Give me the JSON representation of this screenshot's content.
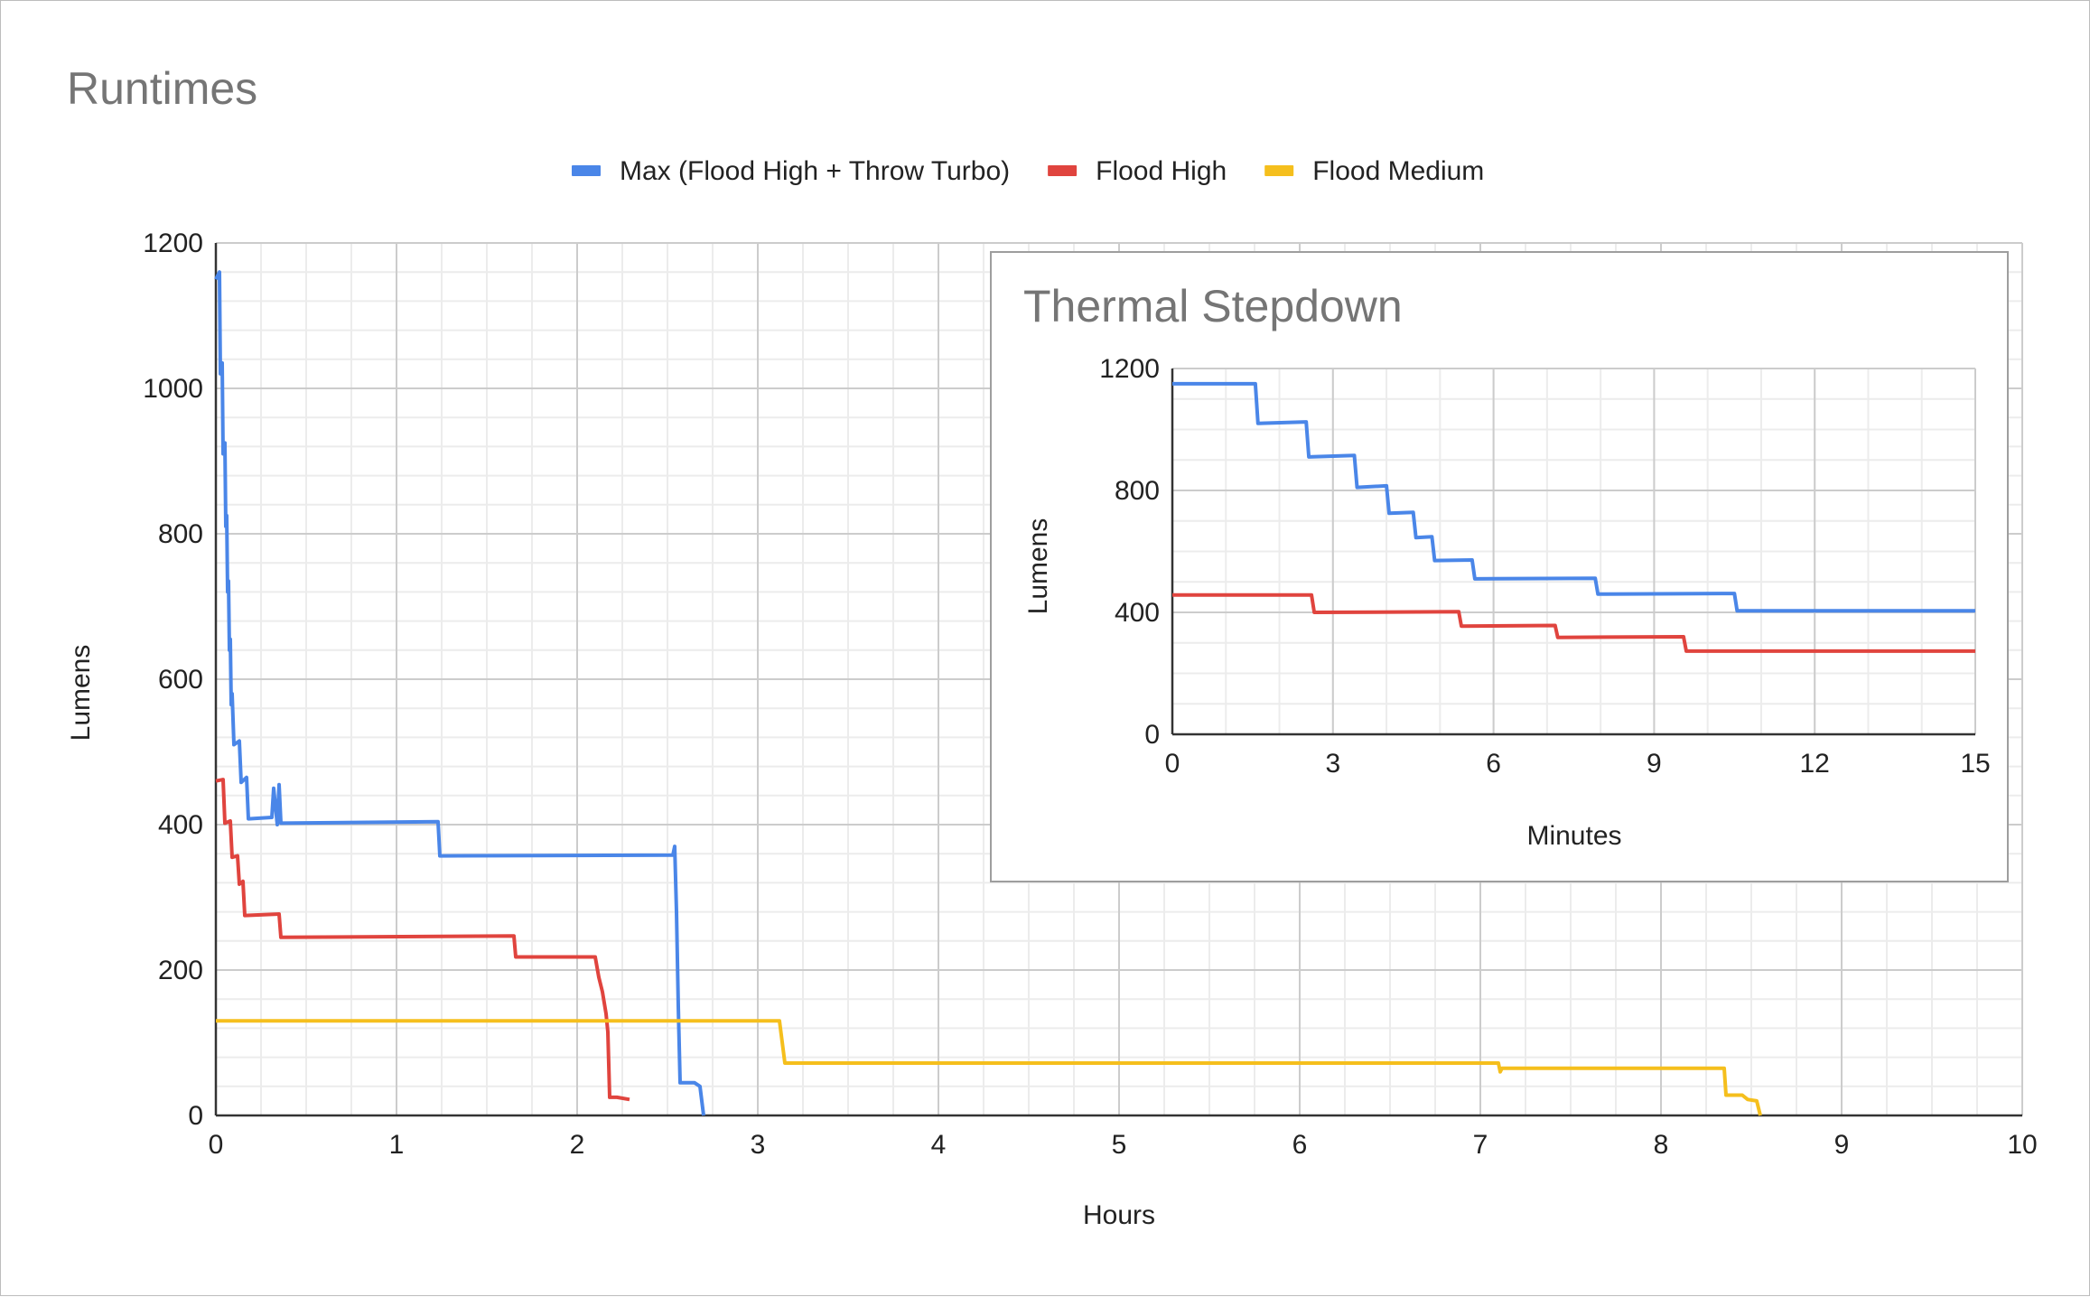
{
  "chart_data": [
    {
      "type": "line",
      "title": "Runtimes",
      "xlabel": "Hours",
      "ylabel": "Lumens",
      "xlim": [
        0,
        10
      ],
      "ylim": [
        0,
        1200
      ],
      "x_ticks": [
        "0",
        "1",
        "2",
        "3",
        "4",
        "5",
        "6",
        "7",
        "8",
        "9",
        "10"
      ],
      "y_ticks": [
        "0",
        "200",
        "400",
        "600",
        "800",
        "1000",
        "1200"
      ],
      "grid": true,
      "legend": "top-center",
      "series": [
        {
          "name": "Max (Flood High + Throw Turbo)",
          "color": "#4a86e8",
          "points": [
            [
              0,
              1150
            ],
            [
              0.02,
              1160
            ],
            [
              0.025,
              1020
            ],
            [
              0.035,
              1035
            ],
            [
              0.04,
              910
            ],
            [
              0.05,
              925
            ],
            [
              0.055,
              810
            ],
            [
              0.06,
              825
            ],
            [
              0.065,
              720
            ],
            [
              0.07,
              735
            ],
            [
              0.075,
              640
            ],
            [
              0.08,
              655
            ],
            [
              0.085,
              565
            ],
            [
              0.09,
              580
            ],
            [
              0.1,
              510
            ],
            [
              0.13,
              515
            ],
            [
              0.14,
              458
            ],
            [
              0.17,
              465
            ],
            [
              0.18,
              408
            ],
            [
              0.31,
              410
            ],
            [
              0.32,
              450
            ],
            [
              0.34,
              400
            ],
            [
              0.35,
              455
            ],
            [
              0.36,
              402
            ],
            [
              1.23,
              404
            ],
            [
              1.24,
              357
            ],
            [
              2.53,
              358
            ],
            [
              2.54,
              370
            ],
            [
              2.55,
              280
            ],
            [
              2.56,
              150
            ],
            [
              2.57,
              45
            ],
            [
              2.65,
              45
            ],
            [
              2.68,
              40
            ],
            [
              2.7,
              0
            ]
          ]
        },
        {
          "name": "Flood High",
          "color": "#e0443e",
          "points": [
            [
              0,
              460
            ],
            [
              0.04,
              462
            ],
            [
              0.05,
              402
            ],
            [
              0.08,
              405
            ],
            [
              0.09,
              355
            ],
            [
              0.12,
              357
            ],
            [
              0.13,
              318
            ],
            [
              0.15,
              322
            ],
            [
              0.16,
              275
            ],
            [
              0.35,
              277
            ],
            [
              0.36,
              245
            ],
            [
              1.65,
              247
            ],
            [
              1.66,
              218
            ],
            [
              2.1,
              218
            ],
            [
              2.12,
              190
            ],
            [
              2.14,
              170
            ],
            [
              2.16,
              140
            ],
            [
              2.17,
              115
            ],
            [
              2.18,
              25
            ],
            [
              2.22,
              25
            ],
            [
              2.29,
              22
            ]
          ]
        },
        {
          "name": "Flood Medium",
          "color": "#f5bf1d",
          "points": [
            [
              0,
              130
            ],
            [
              3.12,
              130
            ],
            [
              3.15,
              72
            ],
            [
              7.1,
              72
            ],
            [
              7.11,
              60
            ],
            [
              7.12,
              65
            ],
            [
              8.35,
              65
            ],
            [
              8.36,
              28
            ],
            [
              8.45,
              28
            ],
            [
              8.48,
              22
            ],
            [
              8.53,
              20
            ],
            [
              8.55,
              0
            ]
          ]
        }
      ]
    },
    {
      "type": "line",
      "title": "Thermal Stepdown",
      "xlabel": "Minutes",
      "ylabel": "Lumens",
      "xlim": [
        0,
        15
      ],
      "ylim": [
        0,
        1200
      ],
      "x_ticks": [
        "0",
        "3",
        "6",
        "9",
        "12",
        "15"
      ],
      "y_ticks": [
        "0",
        "400",
        "800",
        "1200"
      ],
      "grid": true,
      "series": [
        {
          "name": "Max (Flood High + Throw Turbo)",
          "color": "#4a86e8",
          "points": [
            [
              0,
              1150
            ],
            [
              1.55,
              1150
            ],
            [
              1.6,
              1020
            ],
            [
              2.5,
              1025
            ],
            [
              2.55,
              910
            ],
            [
              3.4,
              915
            ],
            [
              3.45,
              810
            ],
            [
              4.0,
              815
            ],
            [
              4.05,
              725
            ],
            [
              4.5,
              728
            ],
            [
              4.55,
              645
            ],
            [
              4.85,
              648
            ],
            [
              4.9,
              570
            ],
            [
              5.6,
              572
            ],
            [
              5.65,
              510
            ],
            [
              7.9,
              512
            ],
            [
              7.95,
              460
            ],
            [
              10.5,
              462
            ],
            [
              10.55,
              405
            ],
            [
              15,
              405
            ]
          ]
        },
        {
          "name": "Flood High",
          "color": "#e0443e",
          "points": [
            [
              0,
              457
            ],
            [
              2.6,
              457
            ],
            [
              2.65,
              400
            ],
            [
              5.35,
              402
            ],
            [
              5.4,
              355
            ],
            [
              7.15,
              357
            ],
            [
              7.2,
              318
            ],
            [
              9.55,
              320
            ],
            [
              9.6,
              273
            ],
            [
              15,
              273
            ]
          ]
        }
      ]
    }
  ]
}
